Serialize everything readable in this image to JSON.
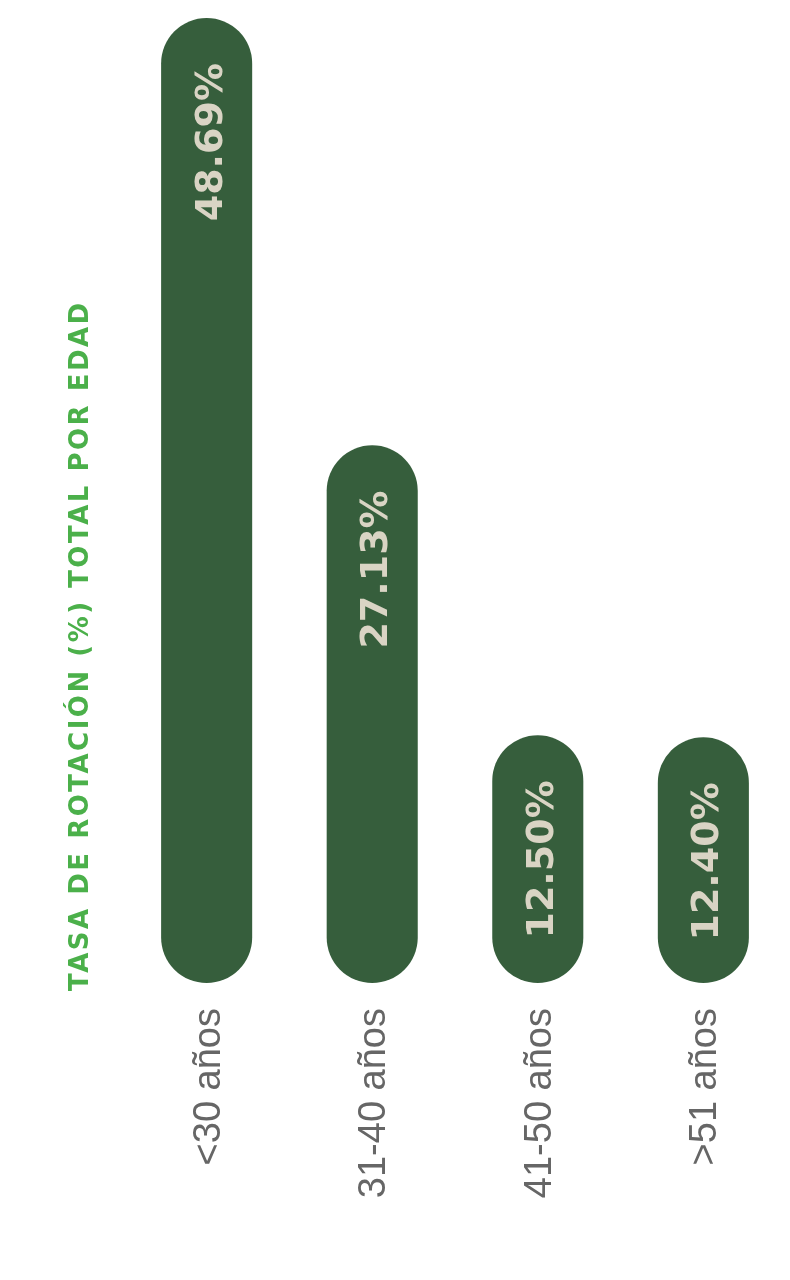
{
  "chart_data": {
    "type": "bar",
    "title": "TASA DE ROTACIÓN (%) TOTAL POR EDAD",
    "categories": [
      "<30 años",
      "31-40 años",
      "41-50 años",
      ">51 años"
    ],
    "values": [
      48.69,
      27.13,
      12.5,
      12.4
    ],
    "value_labels": [
      "48.69%",
      "27.13%",
      "12.50%",
      "12.40%"
    ],
    "color": "#365e3c"
  }
}
